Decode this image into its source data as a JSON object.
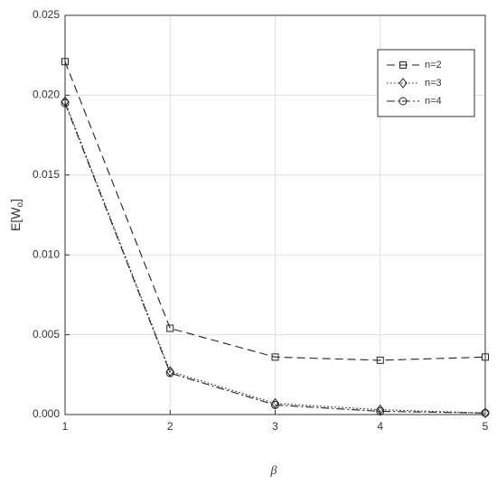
{
  "chart_data": {
    "type": "line",
    "xlabel": "β",
    "ylabel": [
      "E[W",
      "o",
      "]"
    ],
    "x": [
      1,
      2,
      3,
      4,
      5
    ],
    "series": [
      {
        "name": "n=2",
        "color": "#222222",
        "line_style": "dashed",
        "marker": "square",
        "values": [
          0.0221,
          0.0054,
          0.0036,
          0.0034,
          0.0036
        ]
      },
      {
        "name": "n=3",
        "color": "#222222",
        "line_style": "dotted",
        "marker": "diamond",
        "values": [
          0.0196,
          0.0027,
          0.0007,
          0.0003,
          0.0001
        ]
      },
      {
        "name": "n=4",
        "color": "#222222",
        "line_style": "dashdot",
        "marker": "circle",
        "values": [
          0.0195,
          0.0026,
          0.0006,
          0.0002,
          0.0001
        ]
      }
    ],
    "xlim": [
      1,
      5
    ],
    "xticks": [
      1,
      2,
      3,
      4,
      5
    ],
    "ylim": [
      0,
      0.025
    ],
    "yticks": [
      {
        "value": 0,
        "label": "0.000"
      },
      {
        "value": 0.005,
        "label": "0.005"
      },
      {
        "value": 0.01,
        "label": "0.010"
      },
      {
        "value": 0.015,
        "label": "0.015"
      },
      {
        "value": 0.02,
        "label": "0.020"
      },
      {
        "value": 0.025,
        "label": "0.025"
      }
    ],
    "grid": true,
    "legend": "upper right"
  }
}
